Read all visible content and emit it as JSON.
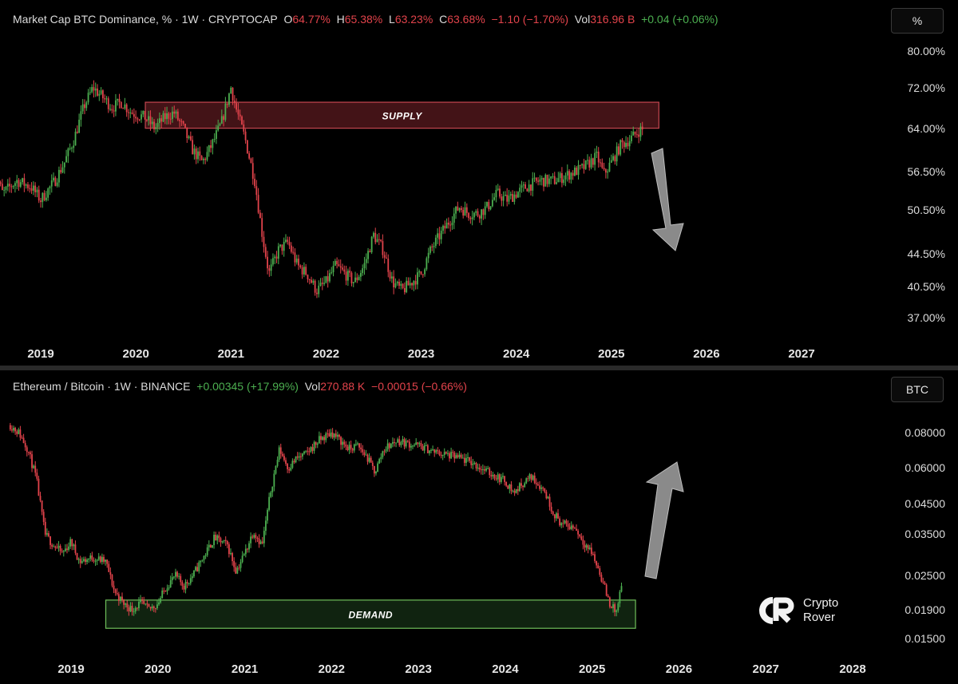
{
  "top": {
    "legend": {
      "title": "Market Cap BTC Dominance, % · 1W · CRYPTOCAP",
      "o_label": "O",
      "o_value": "64.77%",
      "h_label": "H",
      "h_value": "65.38%",
      "l_label": "L",
      "l_value": "63.23%",
      "c_label": "C",
      "c_value": "63.68%",
      "change": "−1.10 (−1.70%)",
      "vol_label": "Vol",
      "vol_value": "316.96 B",
      "vol_change": "+0.04 (+0.06%)"
    },
    "unit_button": "%",
    "zone_label": "SUPPLY"
  },
  "bottom": {
    "legend": {
      "title": "Ethereum / Bitcoin · 1W · BINANCE",
      "change": "+0.00345 (+17.99%)",
      "vol_label": "Vol",
      "vol_value": "270.88 K",
      "vol_change": "−0.00015 (−0.66%)"
    },
    "unit_button": "BTC",
    "zone_label": "DEMAND"
  },
  "watermark": {
    "line1": "Crypto",
    "line2": "Rover"
  },
  "colors": {
    "up": "#4caf50",
    "down": "#e2434b",
    "supply_zone": "#5a1a1f",
    "demand_zone": "#1a3a1a",
    "arrow": "#8a8a8a"
  },
  "chart_data": [
    {
      "type": "candlestick",
      "title": "Market Cap BTC Dominance, % · 1W · CRYPTOCAP",
      "scale": "log",
      "y_ticks": [
        "80.00%",
        "72.00%",
        "64.00%",
        "56.50%",
        "50.50%",
        "44.50%",
        "40.50%",
        "37.00%"
      ],
      "y_tick_values": [
        80,
        72,
        64,
        56.5,
        50.5,
        44.5,
        40.5,
        37
      ],
      "x_ticks": [
        "2019",
        "2020",
        "2021",
        "2022",
        "2023",
        "2024",
        "2025",
        "2026",
        "2027"
      ],
      "x_tick_years": [
        2019,
        2020,
        2021,
        2022,
        2023,
        2024,
        2025,
        2026,
        2027
      ],
      "series_closes": [
        [
          2018.5,
          57
        ],
        [
          2018.6,
          53
        ],
        [
          2018.75,
          55
        ],
        [
          2018.9,
          54
        ],
        [
          2019.0,
          52
        ],
        [
          2019.15,
          55
        ],
        [
          2019.25,
          58
        ],
        [
          2019.35,
          62
        ],
        [
          2019.45,
          68
        ],
        [
          2019.55,
          72
        ],
        [
          2019.65,
          70
        ],
        [
          2019.75,
          68
        ],
        [
          2019.85,
          69
        ],
        [
          2019.95,
          67
        ],
        [
          2020.1,
          66
        ],
        [
          2020.2,
          64
        ],
        [
          2020.3,
          66
        ],
        [
          2020.4,
          67
        ],
        [
          2020.5,
          64
        ],
        [
          2020.6,
          60
        ],
        [
          2020.7,
          58
        ],
        [
          2020.8,
          61
        ],
        [
          2020.9,
          65
        ],
        [
          2021.0,
          72
        ],
        [
          2021.05,
          68
        ],
        [
          2021.15,
          62
        ],
        [
          2021.25,
          55
        ],
        [
          2021.33,
          47
        ],
        [
          2021.4,
          42
        ],
        [
          2021.5,
          45
        ],
        [
          2021.6,
          46
        ],
        [
          2021.7,
          43
        ],
        [
          2021.8,
          42
        ],
        [
          2021.9,
          40
        ],
        [
          2022.0,
          41
        ],
        [
          2022.1,
          43
        ],
        [
          2022.2,
          42
        ],
        [
          2022.3,
          41
        ],
        [
          2022.4,
          43
        ],
        [
          2022.5,
          47
        ],
        [
          2022.6,
          45
        ],
        [
          2022.7,
          41
        ],
        [
          2022.8,
          40
        ],
        [
          2022.9,
          41
        ],
        [
          2023.0,
          42
        ],
        [
          2023.1,
          45
        ],
        [
          2023.2,
          47
        ],
        [
          2023.3,
          49
        ],
        [
          2023.4,
          51
        ],
        [
          2023.5,
          50
        ],
        [
          2023.6,
          50
        ],
        [
          2023.7,
          51
        ],
        [
          2023.8,
          53
        ],
        [
          2023.9,
          52
        ],
        [
          2024.0,
          53
        ],
        [
          2024.1,
          54
        ],
        [
          2024.25,
          55
        ],
        [
          2024.4,
          55
        ],
        [
          2024.55,
          56
        ],
        [
          2024.7,
          57
        ],
        [
          2024.85,
          59
        ],
        [
          2024.92,
          56
        ],
        [
          2025.0,
          58
        ],
        [
          2025.1,
          61
        ],
        [
          2025.2,
          62
        ],
        [
          2025.3,
          63.7
        ]
      ],
      "annotations": [
        {
          "label": "SUPPLY",
          "type": "zone",
          "x_range": [
            2020.1,
            2025.5
          ],
          "y_range": [
            64,
            69
          ]
        },
        {
          "type": "arrow",
          "direction": "down"
        }
      ]
    },
    {
      "type": "candlestick",
      "title": "Ethereum / Bitcoin · 1W · BINANCE",
      "scale": "log",
      "y_ticks": [
        "0.08000",
        "0.06000",
        "0.04500",
        "0.03500",
        "0.02500",
        "0.01900",
        "0.01500"
      ],
      "y_tick_values": [
        0.08,
        0.06,
        0.045,
        0.035,
        0.025,
        0.019,
        0.015
      ],
      "x_ticks": [
        "2019",
        "2020",
        "2021",
        "2022",
        "2023",
        "2024",
        "2025",
        "2026",
        "2027",
        "2028"
      ],
      "x_tick_years": [
        2019,
        2020,
        2021,
        2022,
        2023,
        2024,
        2025,
        2026,
        2027,
        2028
      ],
      "series_closes": [
        [
          2018.3,
          0.085
        ],
        [
          2018.4,
          0.08
        ],
        [
          2018.5,
          0.07
        ],
        [
          2018.6,
          0.055
        ],
        [
          2018.7,
          0.035
        ],
        [
          2018.8,
          0.032
        ],
        [
          2018.9,
          0.03
        ],
        [
          2019.0,
          0.033
        ],
        [
          2019.1,
          0.028
        ],
        [
          2019.25,
          0.029
        ],
        [
          2019.4,
          0.028
        ],
        [
          2019.5,
          0.022
        ],
        [
          2019.6,
          0.02
        ],
        [
          2019.7,
          0.019
        ],
        [
          2019.8,
          0.02
        ],
        [
          2019.9,
          0.019
        ],
        [
          2020.0,
          0.02
        ],
        [
          2020.1,
          0.023
        ],
        [
          2020.2,
          0.025
        ],
        [
          2020.3,
          0.023
        ],
        [
          2020.4,
          0.025
        ],
        [
          2020.55,
          0.03
        ],
        [
          2020.65,
          0.034
        ],
        [
          2020.8,
          0.032
        ],
        [
          2020.9,
          0.026
        ],
        [
          2021.0,
          0.03
        ],
        [
          2021.1,
          0.036
        ],
        [
          2021.2,
          0.032
        ],
        [
          2021.3,
          0.05
        ],
        [
          2021.4,
          0.07
        ],
        [
          2021.5,
          0.06
        ],
        [
          2021.6,
          0.065
        ],
        [
          2021.7,
          0.067
        ],
        [
          2021.85,
          0.075
        ],
        [
          2022.0,
          0.08
        ],
        [
          2022.1,
          0.075
        ],
        [
          2022.2,
          0.07
        ],
        [
          2022.3,
          0.072
        ],
        [
          2022.4,
          0.066
        ],
        [
          2022.5,
          0.058
        ],
        [
          2022.6,
          0.07
        ],
        [
          2022.75,
          0.075
        ],
        [
          2022.9,
          0.073
        ],
        [
          2023.0,
          0.072
        ],
        [
          2023.2,
          0.068
        ],
        [
          2023.4,
          0.066
        ],
        [
          2023.6,
          0.063
        ],
        [
          2023.8,
          0.058
        ],
        [
          2024.0,
          0.054
        ],
        [
          2024.1,
          0.049
        ],
        [
          2024.2,
          0.053
        ],
        [
          2024.3,
          0.056
        ],
        [
          2024.45,
          0.05
        ],
        [
          2024.55,
          0.042
        ],
        [
          2024.65,
          0.038
        ],
        [
          2024.8,
          0.037
        ],
        [
          2024.9,
          0.033
        ],
        [
          2025.0,
          0.03
        ],
        [
          2025.1,
          0.025
        ],
        [
          2025.2,
          0.02
        ],
        [
          2025.28,
          0.0185
        ],
        [
          2025.33,
          0.0225
        ]
      ],
      "annotations": [
        {
          "label": "DEMAND",
          "type": "zone",
          "x_range": [
            2019.4,
            2025.5
          ],
          "y_range": [
            0.0163,
            0.0205
          ]
        },
        {
          "type": "arrow",
          "direction": "up"
        }
      ]
    }
  ]
}
